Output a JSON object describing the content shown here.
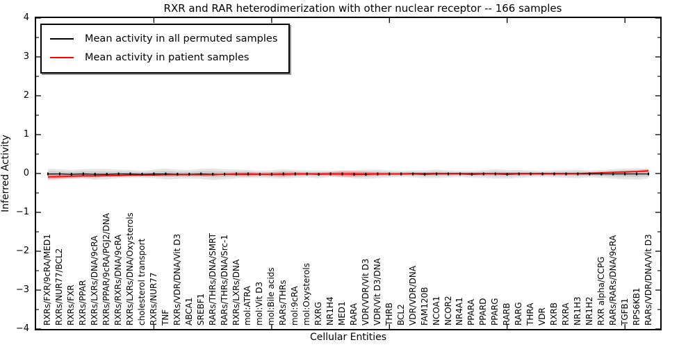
{
  "chart_data": {
    "type": "line",
    "title": "RXR and RAR heterodimerization with other nuclear receptor -- 166 samples",
    "xlabel": "Cellular Entities",
    "ylabel": "Inferred Activity",
    "ylim": [
      -4,
      4
    ],
    "xlim": [
      0,
      53
    ],
    "grid": false,
    "legend_position": "upper left",
    "x_major_ticks": [
      10,
      20,
      30,
      40,
      50
    ],
    "y_major_tick_step": 1,
    "y_minor_tick_step": 0.5,
    "y_tick_labels": [
      "4",
      "3",
      "2",
      "1",
      "0",
      "−1",
      "−2",
      "−3",
      "−4"
    ],
    "categories": [
      "RXRs/FXR/9cRA/MED1",
      "RXRs/NUR77/BCL2",
      "RXRs/FXR",
      "RXRs/PPAR",
      "RXRs/LXRs/DNA/9cRA",
      "RXRs/PPAR/9cRA/PGJ2/DNA",
      "RXRs/RXRs/DNA/9cRA",
      "RXRs/LXRs/DNA/Oxysterols",
      "cholesterol transport",
      "RXRs/NUR77",
      "TNF",
      "RXRs/VDR/DNA/Vit D3",
      "ABCA1",
      "SREBF1",
      "RARs/THRs/DNA/SMRT",
      "RARs/THRs/DNA/Src-1",
      "RXRs/LXRs/DNA",
      "mol:ATRA",
      "mol:Vit D3",
      "mol:Bile acids",
      "RARs/THRs",
      "mol:9cRA",
      "mol:Oxysterols",
      "RXRG",
      "NR1H4",
      "MED1",
      "RARA",
      "VDR/VDR/Vit D3",
      "VDR/Vit D3/DNA",
      "THRB",
      "BCL2",
      "VDR/VDR/DNA",
      "FAM120B",
      "NCOA1",
      "NCOR2",
      "NR4A1",
      "PPARA",
      "PPARD",
      "PPARG",
      "RARB",
      "RARG",
      "THRA",
      "VDR",
      "RXRB",
      "RXRA",
      "NR1H3",
      "NR1H2",
      "RXR alpha/CCPG",
      "RARs/RARs/DNA/9cRA",
      "TGFB1",
      "RPS6KB1",
      "RARs/VDR/DNA/Vit D3"
    ],
    "series": [
      {
        "name": "Mean activity in all permuted samples",
        "color": "#000000",
        "band_color": "rgba(0,0,0,0.10)",
        "marker": "small-black-dash",
        "values": [
          -0.01,
          -0.01,
          -0.02,
          -0.01,
          -0.02,
          -0.02,
          -0.01,
          -0.01,
          -0.02,
          -0.01,
          -0.01,
          -0.02,
          -0.02,
          -0.01,
          -0.02,
          -0.02,
          -0.01,
          -0.01,
          -0.02,
          -0.02,
          -0.01,
          -0.01,
          -0.01,
          -0.02,
          -0.01,
          -0.01,
          -0.02,
          -0.02,
          -0.01,
          -0.01,
          -0.01,
          -0.01,
          -0.02,
          -0.01,
          -0.01,
          -0.01,
          -0.02,
          -0.01,
          -0.01,
          -0.02,
          -0.01,
          -0.01,
          -0.01,
          -0.01,
          -0.01,
          -0.01,
          -0.01,
          -0.01,
          -0.01,
          -0.01,
          -0.01,
          -0.01
        ],
        "band_halfwidth": [
          0.13,
          0.12,
          0.11,
          0.12,
          0.14,
          0.13,
          0.11,
          0.1,
          0.09,
          0.11,
          0.14,
          0.12,
          0.11,
          0.13,
          0.15,
          0.13,
          0.11,
          0.1,
          0.09,
          0.1,
          0.12,
          0.1,
          0.09,
          0.1,
          0.08,
          0.09,
          0.1,
          0.12,
          0.11,
          0.09,
          0.08,
          0.09,
          0.1,
          0.11,
          0.09,
          0.08,
          0.09,
          0.1,
          0.12,
          0.11,
          0.1,
          0.09,
          0.08,
          0.09,
          0.1,
          0.11,
          0.09,
          0.1,
          0.12,
          0.14,
          0.15,
          0.12
        ]
      },
      {
        "name": "Mean activity in patient samples",
        "color": "#ff0000",
        "band_color": "rgba(255,0,0,0.16)",
        "marker": "none",
        "values": [
          -0.09,
          -0.08,
          -0.07,
          -0.06,
          -0.06,
          -0.05,
          -0.05,
          -0.04,
          -0.04,
          -0.04,
          -0.03,
          -0.03,
          -0.03,
          -0.03,
          -0.03,
          -0.02,
          -0.02,
          -0.02,
          -0.02,
          -0.02,
          -0.02,
          -0.01,
          -0.01,
          -0.01,
          -0.01,
          -0.01,
          -0.01,
          -0.01,
          -0.01,
          -0.01,
          -0.01,
          0.0,
          0.0,
          0.0,
          0.0,
          0.0,
          0.0,
          0.0,
          0.0,
          0.0,
          0.0,
          0.0,
          0.0,
          0.0,
          0.0,
          0.0,
          0.01,
          0.02,
          0.03,
          0.04,
          0.05,
          0.07
        ],
        "band_halfwidth": [
          0.08,
          0.07,
          0.06,
          0.05,
          0.05,
          0.04,
          0.04,
          0.04,
          0.03,
          0.03,
          0.04,
          0.03,
          0.03,
          0.03,
          0.04,
          0.03,
          0.05,
          0.06,
          0.04,
          0.05,
          0.07,
          0.05,
          0.03,
          0.03,
          0.05,
          0.08,
          0.08,
          0.06,
          0.04,
          0.03,
          0.03,
          0.02,
          0.02,
          0.03,
          0.02,
          0.02,
          0.02,
          0.02,
          0.02,
          0.02,
          0.02,
          0.02,
          0.02,
          0.02,
          0.02,
          0.02,
          0.02,
          0.03,
          0.03,
          0.04,
          0.04,
          0.05
        ]
      }
    ]
  }
}
